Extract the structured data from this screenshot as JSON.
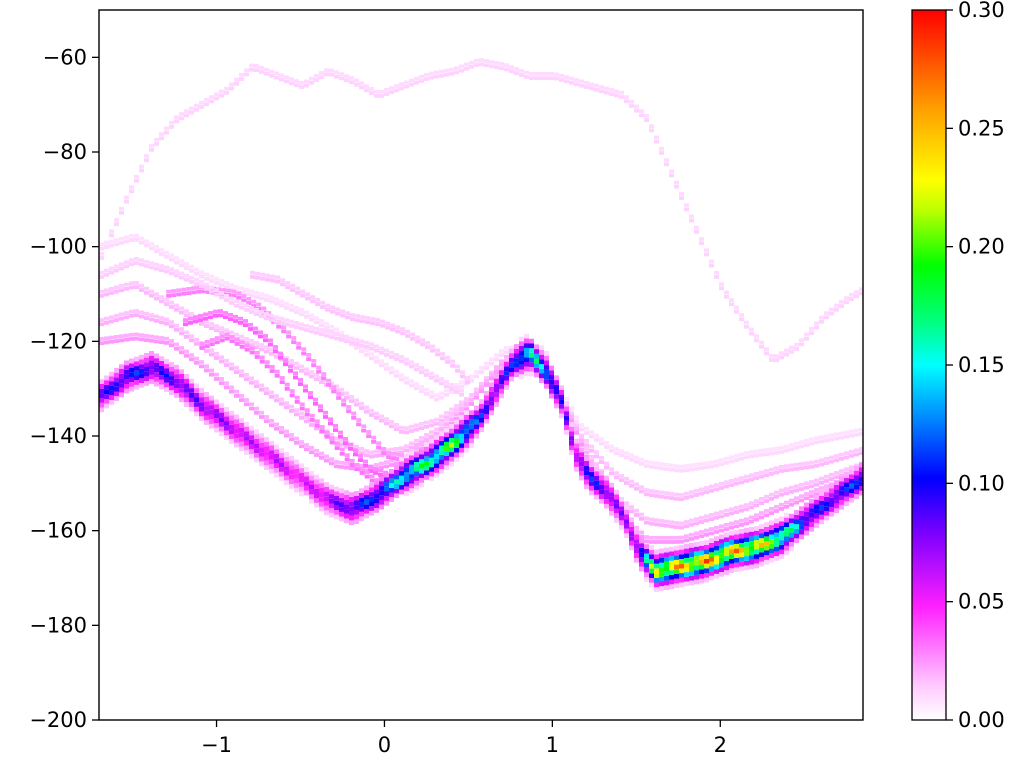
{
  "chart_data": {
    "type": "heatmap",
    "title": "",
    "xlabel": "",
    "ylabel": "",
    "xlim": [
      -1.7,
      2.85
    ],
    "ylim": [
      -200,
      -50
    ],
    "x_ticks": [
      {
        "value": -1,
        "label": "−1"
      },
      {
        "value": 0,
        "label": "0"
      },
      {
        "value": 1,
        "label": "1"
      },
      {
        "value": 2,
        "label": "2"
      }
    ],
    "y_ticks": [
      {
        "value": -60,
        "label": "−60"
      },
      {
        "value": -80,
        "label": "−80"
      },
      {
        "value": -100,
        "label": "−100"
      },
      {
        "value": -120,
        "label": "−120"
      },
      {
        "value": -140,
        "label": "−140"
      },
      {
        "value": -160,
        "label": "−160"
      },
      {
        "value": -180,
        "label": "−180"
      },
      {
        "value": -200,
        "label": "−200"
      }
    ],
    "colorbar": {
      "colormap": "gist_ncar-like (white-magenta-blue-cyan-green-yellow-orange-red)",
      "range": [
        0.0,
        0.3
      ],
      "ticks": [
        {
          "value": 0.0,
          "label": "0.00"
        },
        {
          "value": 0.05,
          "label": "0.05"
        },
        {
          "value": 0.1,
          "label": "0.10"
        },
        {
          "value": 0.15,
          "label": "0.15"
        },
        {
          "value": 0.2,
          "label": "0.20"
        },
        {
          "value": 0.25,
          "label": "0.25"
        },
        {
          "value": 0.3,
          "label": "0.30"
        }
      ]
    },
    "main_track": {
      "description_points": [
        [
          -1.7,
          -131
        ],
        [
          -1.55,
          -127
        ],
        [
          -1.4,
          -125
        ],
        [
          -1.25,
          -128
        ],
        [
          -1.1,
          -133
        ],
        [
          -0.95,
          -137
        ],
        [
          -0.8,
          -141
        ],
        [
          -0.65,
          -145
        ],
        [
          -0.5,
          -149
        ],
        [
          -0.35,
          -153
        ],
        [
          -0.2,
          -155
        ],
        [
          -0.05,
          -152
        ],
        [
          0.1,
          -148
        ],
        [
          0.25,
          -145
        ],
        [
          0.4,
          -141
        ],
        [
          0.55,
          -136
        ],
        [
          0.65,
          -130
        ],
        [
          0.75,
          -124
        ],
        [
          0.85,
          -122
        ],
        [
          0.95,
          -126
        ],
        [
          1.05,
          -133
        ],
        [
          1.12,
          -143
        ],
        [
          1.2,
          -148
        ],
        [
          1.3,
          -151
        ],
        [
          1.42,
          -157
        ],
        [
          1.5,
          -164
        ],
        [
          1.6,
          -168
        ],
        [
          1.75,
          -167
        ],
        [
          1.9,
          -166
        ],
        [
          2.05,
          -164
        ],
        [
          2.2,
          -163
        ],
        [
          2.35,
          -161
        ],
        [
          2.5,
          -157
        ],
        [
          2.65,
          -153
        ],
        [
          2.85,
          -148
        ]
      ],
      "intensity": [
        0.1,
        0.12,
        0.11,
        0.1,
        0.09,
        0.08,
        0.07,
        0.07,
        0.06,
        0.08,
        0.11,
        0.13,
        0.18,
        0.2,
        0.22,
        0.12,
        0.1,
        0.12,
        0.19,
        0.15,
        0.1,
        0.08,
        0.12,
        0.1,
        0.08,
        0.1,
        0.26,
        0.28,
        0.29,
        0.28,
        0.27,
        0.22,
        0.12,
        0.11,
        0.13
      ]
    },
    "faint_tracks": [
      {
        "intensity": 0.012,
        "points": [
          [
            -1.7,
            -102
          ],
          [
            -1.55,
            -90
          ],
          [
            -1.4,
            -79
          ],
          [
            -1.25,
            -73
          ],
          [
            -1.1,
            -70
          ],
          [
            -0.95,
            -67
          ],
          [
            -0.8,
            -62
          ],
          [
            -0.65,
            -64
          ],
          [
            -0.5,
            -66
          ],
          [
            -0.35,
            -63
          ],
          [
            -0.2,
            -65
          ],
          [
            -0.05,
            -68
          ],
          [
            0.1,
            -66
          ],
          [
            0.25,
            -64
          ],
          [
            0.4,
            -63
          ],
          [
            0.55,
            -61
          ],
          [
            0.7,
            -62
          ],
          [
            0.85,
            -64
          ],
          [
            1.0,
            -64
          ],
          [
            1.2,
            -66
          ],
          [
            1.4,
            -68
          ],
          [
            1.55,
            -73
          ],
          [
            1.7,
            -85
          ],
          [
            1.85,
            -97
          ],
          [
            2.0,
            -109
          ],
          [
            2.15,
            -117
          ],
          [
            2.3,
            -124
          ],
          [
            2.45,
            -121
          ],
          [
            2.6,
            -115
          ],
          [
            2.75,
            -111
          ],
          [
            2.85,
            -109
          ]
        ]
      },
      {
        "intensity": 0.01,
        "points": [
          [
            -1.7,
            -100
          ],
          [
            -1.5,
            -98
          ],
          [
            -1.3,
            -102
          ],
          [
            -1.1,
            -106
          ],
          [
            -0.9,
            -109
          ],
          [
            -0.7,
            -111
          ],
          [
            -0.5,
            -114
          ],
          [
            -0.3,
            -118
          ],
          [
            -0.1,
            -123
          ],
          [
            0.1,
            -128
          ],
          [
            0.3,
            -132
          ],
          [
            0.5,
            -128
          ],
          [
            0.7,
            -122
          ],
          [
            0.85,
            -121
          ],
          [
            1.0,
            -128
          ],
          [
            1.15,
            -138
          ],
          [
            1.35,
            -143
          ],
          [
            1.55,
            -146
          ],
          [
            1.75,
            -147
          ],
          [
            1.95,
            -146
          ],
          [
            2.15,
            -144
          ],
          [
            2.35,
            -143
          ],
          [
            2.55,
            -141
          ],
          [
            2.85,
            -139
          ]
        ]
      },
      {
        "intensity": 0.018,
        "points": [
          [
            -1.7,
            -110
          ],
          [
            -1.5,
            -108
          ],
          [
            -1.3,
            -112
          ],
          [
            -1.1,
            -116
          ],
          [
            -0.9,
            -119
          ],
          [
            -0.7,
            -122
          ],
          [
            -0.5,
            -126
          ],
          [
            -0.3,
            -130
          ],
          [
            -0.1,
            -135
          ],
          [
            0.1,
            -139
          ],
          [
            0.3,
            -137
          ],
          [
            0.5,
            -132
          ],
          [
            0.7,
            -124
          ],
          [
            0.85,
            -121
          ],
          [
            1.0,
            -128
          ],
          [
            1.15,
            -140
          ],
          [
            1.35,
            -148
          ],
          [
            1.55,
            -152
          ],
          [
            1.75,
            -153
          ],
          [
            1.95,
            -151
          ],
          [
            2.15,
            -149
          ],
          [
            2.35,
            -147
          ],
          [
            2.55,
            -146
          ],
          [
            2.85,
            -143
          ]
        ]
      },
      {
        "intensity": 0.02,
        "points": [
          [
            -1.7,
            -116
          ],
          [
            -1.5,
            -114
          ],
          [
            -1.3,
            -116
          ],
          [
            -1.1,
            -121
          ],
          [
            -0.9,
            -126
          ],
          [
            -0.7,
            -131
          ],
          [
            -0.5,
            -136
          ],
          [
            -0.3,
            -141
          ],
          [
            -0.1,
            -144
          ],
          [
            0.1,
            -143
          ],
          [
            0.3,
            -139
          ],
          [
            0.5,
            -132
          ],
          [
            0.7,
            -124
          ],
          [
            0.85,
            -121
          ],
          [
            1.0,
            -128
          ],
          [
            1.2,
            -144
          ],
          [
            1.4,
            -154
          ],
          [
            1.55,
            -158
          ],
          [
            1.75,
            -159
          ],
          [
            1.95,
            -157
          ],
          [
            2.15,
            -155
          ],
          [
            2.35,
            -152
          ],
          [
            2.55,
            -150
          ],
          [
            2.85,
            -146
          ]
        ]
      },
      {
        "intensity": 0.025,
        "points": [
          [
            -1.7,
            -120
          ],
          [
            -1.5,
            -119
          ],
          [
            -1.3,
            -120
          ],
          [
            -1.1,
            -125
          ],
          [
            -0.9,
            -131
          ],
          [
            -0.7,
            -137
          ],
          [
            -0.5,
            -142
          ],
          [
            -0.3,
            -146
          ],
          [
            -0.1,
            -147
          ],
          [
            0.1,
            -145
          ],
          [
            0.3,
            -140
          ],
          [
            0.5,
            -133
          ],
          [
            0.7,
            -124
          ],
          [
            0.85,
            -122
          ],
          [
            1.0,
            -128
          ],
          [
            1.2,
            -145
          ],
          [
            1.4,
            -157
          ],
          [
            1.55,
            -162
          ],
          [
            1.75,
            -162
          ],
          [
            1.95,
            -160
          ],
          [
            2.15,
            -158
          ],
          [
            2.35,
            -155
          ],
          [
            2.55,
            -152
          ],
          [
            2.85,
            -148
          ]
        ]
      },
      {
        "intensity": 0.03,
        "points": [
          [
            -1.3,
            -110
          ],
          [
            -1.1,
            -109
          ],
          [
            -0.9,
            -110
          ],
          [
            -0.75,
            -113
          ],
          [
            -0.6,
            -118
          ],
          [
            -0.45,
            -124
          ],
          [
            -0.3,
            -131
          ],
          [
            -0.15,
            -138
          ],
          [
            0.0,
            -144
          ],
          [
            0.15,
            -145
          ],
          [
            0.3,
            -141
          ]
        ]
      },
      {
        "intensity": 0.035,
        "points": [
          [
            -1.2,
            -116
          ],
          [
            -1.0,
            -114
          ],
          [
            -0.85,
            -116
          ],
          [
            -0.7,
            -120
          ],
          [
            -0.55,
            -127
          ],
          [
            -0.4,
            -134
          ],
          [
            -0.25,
            -141
          ],
          [
            -0.1,
            -147
          ],
          [
            0.05,
            -149
          ],
          [
            0.2,
            -146
          ],
          [
            0.35,
            -141
          ]
        ]
      },
      {
        "intensity": 0.032,
        "points": [
          [
            -1.1,
            -121
          ],
          [
            -0.95,
            -119
          ],
          [
            -0.8,
            -122
          ],
          [
            -0.65,
            -127
          ],
          [
            -0.5,
            -134
          ],
          [
            -0.35,
            -140
          ],
          [
            -0.2,
            -146
          ],
          [
            -0.05,
            -150
          ],
          [
            0.1,
            -149
          ],
          [
            0.25,
            -145
          ]
        ]
      },
      {
        "intensity": 0.014,
        "points": [
          [
            -1.7,
            -106
          ],
          [
            -1.5,
            -103
          ],
          [
            -1.3,
            -105
          ],
          [
            -1.1,
            -108
          ],
          [
            -0.9,
            -112
          ],
          [
            -0.7,
            -115
          ],
          [
            -0.5,
            -117
          ],
          [
            -0.3,
            -119
          ],
          [
            -0.1,
            -121
          ],
          [
            0.1,
            -124
          ],
          [
            0.3,
            -128
          ],
          [
            0.45,
            -131
          ]
        ]
      },
      {
        "intensity": 0.016,
        "points": [
          [
            -0.8,
            -106
          ],
          [
            -0.65,
            -107
          ],
          [
            -0.5,
            -110
          ],
          [
            -0.35,
            -113
          ],
          [
            -0.2,
            -115
          ],
          [
            -0.05,
            -116
          ],
          [
            0.1,
            -118
          ],
          [
            0.25,
            -121
          ],
          [
            0.4,
            -125
          ],
          [
            0.5,
            -129
          ]
        ]
      }
    ]
  }
}
